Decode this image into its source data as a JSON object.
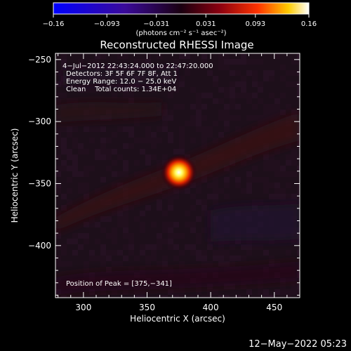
{
  "chart_data": {
    "type": "heatmap",
    "title": "Reconstructed RHESSI Image",
    "xlabel": "Heliocentric X (arcsec)",
    "ylabel": "Heliocentric Y (arcsec)",
    "xlim": [
      278,
      470
    ],
    "ylim": [
      -442,
      -245
    ],
    "xticks": [
      300,
      350,
      400,
      450
    ],
    "yticks": [
      -250,
      -300,
      -350,
      -400
    ],
    "colorbar": {
      "range": [
        -0.16,
        0.16
      ],
      "tick_values": [
        -0.16,
        -0.093,
        -0.031,
        0.031,
        0.093,
        0.16
      ],
      "tick_labels": [
        "−0.16",
        "−0.093",
        "−0.031",
        "0.031",
        "0.093",
        "0.16"
      ],
      "units": "(photons cm⁻² s⁻¹ asec⁻²)",
      "colormap": "blue-purple-red-yellow-white"
    },
    "annotations": [
      "4−Jul−2012 22:43:24.000 to 22:47:20.000",
      "Detectors: 3F 5F 6F 7F 8F, Att 1",
      "Energy Range: 12.0 − 25.0 keV",
      "Clean    Total counts: 1.34E+04"
    ],
    "peak_label": "Position of Peak = [375,−341]",
    "peak": {
      "x": 375,
      "y": -341,
      "value": 0.16
    },
    "background_value": -0.02,
    "footer": "12−May−2022 05:23",
    "grid": false
  }
}
